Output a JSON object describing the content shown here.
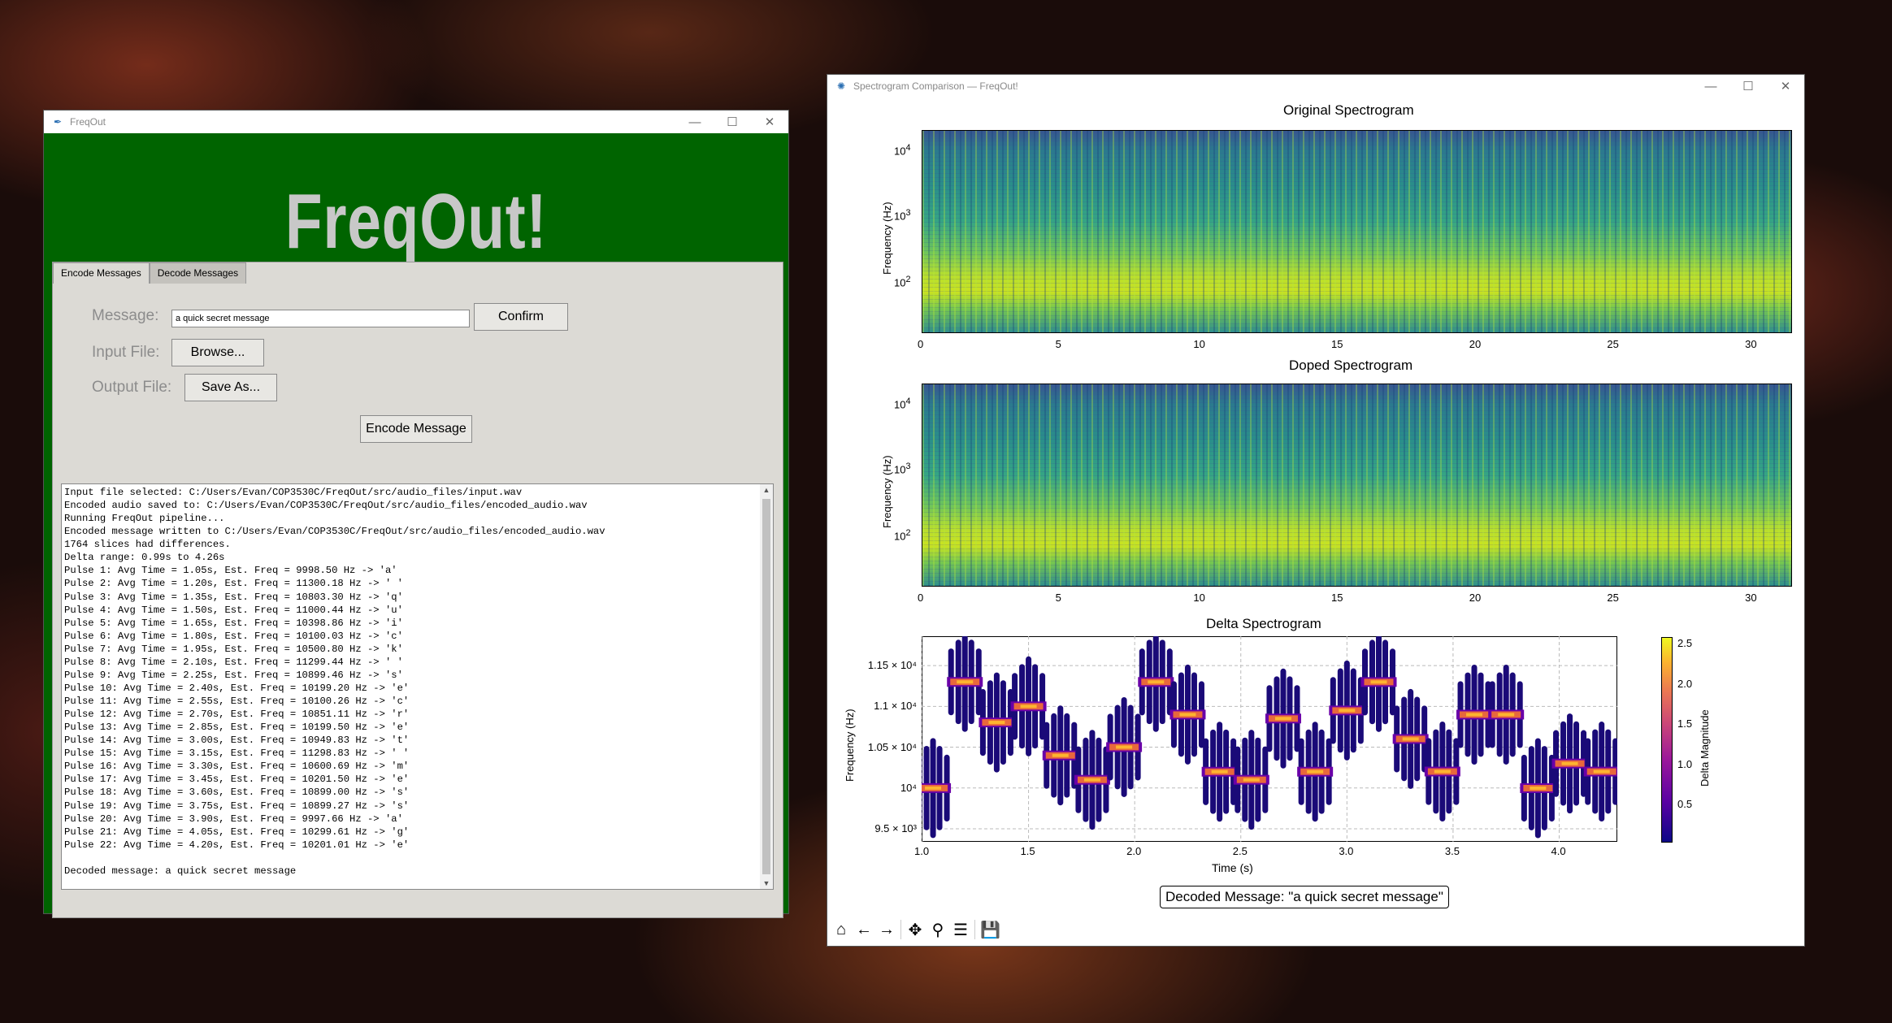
{
  "freqout_window": {
    "title": "FreqOut",
    "app_name": "FreqOut!",
    "tabs": [
      "Encode Messages",
      "Decode Messages"
    ],
    "message_label": "Message:",
    "message_value": "a quick secret message",
    "confirm_label": "Confirm",
    "input_label": "Input File:",
    "browse_label": "Browse...",
    "output_label": "Output File:",
    "save_as_label": "Save As...",
    "encode_label": "Encode Message",
    "log": [
      "Input file selected: C:/Users/Evan/COP3530C/FreqOut/src/audio_files/input.wav",
      "Encoded audio saved to: C:/Users/Evan/COP3530C/FreqOut/src/audio_files/encoded_audio.wav",
      "Running FreqOut pipeline...",
      "Encoded message written to C:/Users/Evan/COP3530C/FreqOut/src/audio_files/encoded_audio.wav",
      "1764 slices had differences.",
      "Delta range: 0.99s to 4.26s",
      "Pulse 1: Avg Time = 1.05s, Est. Freq = 9998.50 Hz -> 'a'",
      "Pulse 2: Avg Time = 1.20s, Est. Freq = 11300.18 Hz -> ' '",
      "Pulse 3: Avg Time = 1.35s, Est. Freq = 10803.30 Hz -> 'q'",
      "Pulse 4: Avg Time = 1.50s, Est. Freq = 11000.44 Hz -> 'u'",
      "Pulse 5: Avg Time = 1.65s, Est. Freq = 10398.86 Hz -> 'i'",
      "Pulse 6: Avg Time = 1.80s, Est. Freq = 10100.03 Hz -> 'c'",
      "Pulse 7: Avg Time = 1.95s, Est. Freq = 10500.80 Hz -> 'k'",
      "Pulse 8: Avg Time = 2.10s, Est. Freq = 11299.44 Hz -> ' '",
      "Pulse 9: Avg Time = 2.25s, Est. Freq = 10899.46 Hz -> 's'",
      "Pulse 10: Avg Time = 2.40s, Est. Freq = 10199.20 Hz -> 'e'",
      "Pulse 11: Avg Time = 2.55s, Est. Freq = 10100.26 Hz -> 'c'",
      "Pulse 12: Avg Time = 2.70s, Est. Freq = 10851.11 Hz -> 'r'",
      "Pulse 13: Avg Time = 2.85s, Est. Freq = 10199.50 Hz -> 'e'",
      "Pulse 14: Avg Time = 3.00s, Est. Freq = 10949.83 Hz -> 't'",
      "Pulse 15: Avg Time = 3.15s, Est. Freq = 11298.83 Hz -> ' '",
      "Pulse 16: Avg Time = 3.30s, Est. Freq = 10600.69 Hz -> 'm'",
      "Pulse 17: Avg Time = 3.45s, Est. Freq = 10201.50 Hz -> 'e'",
      "Pulse 18: Avg Time = 3.60s, Est. Freq = 10899.00 Hz -> 's'",
      "Pulse 19: Avg Time = 3.75s, Est. Freq = 10899.27 Hz -> 's'",
      "Pulse 20: Avg Time = 3.90s, Est. Freq = 9997.66 Hz -> 'a'",
      "Pulse 21: Avg Time = 4.05s, Est. Freq = 10299.61 Hz -> 'g'",
      "Pulse 22: Avg Time = 4.20s, Est. Freq = 10201.01 Hz -> 'e'",
      "",
      "Decoded message: a quick secret message"
    ]
  },
  "spectrogram_window": {
    "title": "Spectrogram Comparison — FreqOut!",
    "decoded_banner": "Decoded Message: \"a quick secret message\"",
    "toolbar_icons": [
      "home-icon",
      "back-icon",
      "forward-icon",
      "pan-icon",
      "zoom-icon",
      "configure-icon",
      "save-icon"
    ]
  },
  "chart_data": [
    {
      "type": "heatmap",
      "title": "Original Spectrogram",
      "ylabel": "Frequency (Hz)",
      "yscale": "log",
      "xticks": [
        "0",
        "5",
        "10",
        "15",
        "20",
        "25",
        "30"
      ],
      "yticks": [
        "10^2",
        "10^3",
        "10^4"
      ],
      "xlim": [
        0,
        31.5
      ]
    },
    {
      "type": "heatmap",
      "title": "Doped Spectrogram",
      "ylabel": "Frequency (Hz)",
      "yscale": "log",
      "xticks": [
        "0",
        "5",
        "10",
        "15",
        "20",
        "25",
        "30"
      ],
      "yticks": [
        "10^2",
        "10^3",
        "10^4"
      ],
      "xlim": [
        0,
        31.5
      ]
    },
    {
      "type": "scatter",
      "title": "Delta Spectrogram",
      "xlabel": "Time (s)",
      "ylabel": "Frequency (Hz)",
      "colorbar_label": "Delta Magnitude",
      "colorbar_ticks": [
        "0.5",
        "1.0",
        "1.5",
        "2.0",
        "2.5"
      ],
      "xticks": [
        "1.0",
        "1.5",
        "2.0",
        "2.5",
        "3.0",
        "3.5",
        "4.0"
      ],
      "yticks": [
        "9.5 × 10³",
        "10⁴",
        "1.05 × 10⁴",
        "1.1 × 10⁴",
        "1.15 × 10⁴"
      ],
      "xlim": [
        1.0,
        4.27
      ],
      "ylim": [
        9350,
        11850
      ],
      "grid": true,
      "points": [
        {
          "t": 1.05,
          "f": 9998.5
        },
        {
          "t": 1.2,
          "f": 11300.18
        },
        {
          "t": 1.35,
          "f": 10803.3
        },
        {
          "t": 1.5,
          "f": 11000.44
        },
        {
          "t": 1.65,
          "f": 10398.86
        },
        {
          "t": 1.8,
          "f": 10100.03
        },
        {
          "t": 1.95,
          "f": 10500.8
        },
        {
          "t": 2.1,
          "f": 11299.44
        },
        {
          "t": 2.25,
          "f": 10899.46
        },
        {
          "t": 2.4,
          "f": 10199.2
        },
        {
          "t": 2.55,
          "f": 10100.26
        },
        {
          "t": 2.7,
          "f": 10851.11
        },
        {
          "t": 2.85,
          "f": 10199.5
        },
        {
          "t": 3.0,
          "f": 10949.83
        },
        {
          "t": 3.15,
          "f": 11298.83
        },
        {
          "t": 3.3,
          "f": 10600.69
        },
        {
          "t": 3.45,
          "f": 10201.5
        },
        {
          "t": 3.6,
          "f": 10899.0
        },
        {
          "t": 3.75,
          "f": 10899.27
        },
        {
          "t": 3.9,
          "f": 9997.66
        },
        {
          "t": 4.05,
          "f": 10299.61
        },
        {
          "t": 4.2,
          "f": 10201.01
        }
      ]
    }
  ]
}
